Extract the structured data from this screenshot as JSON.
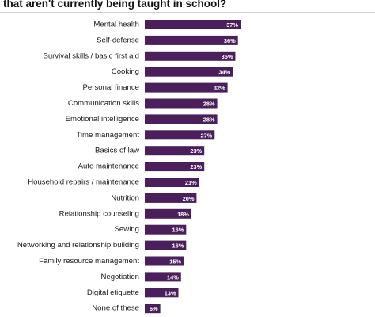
{
  "title": "that aren't currently being taught in school?",
  "colors": {
    "bar": "#4b1f5c",
    "value_text": "#ffffff",
    "label_text": "#1a1a1a"
  },
  "chart_data": {
    "type": "bar",
    "orientation": "horizontal",
    "categories": [
      "Mental health",
      "Self-defense",
      "Survival skills / basic first aid",
      "Cooking",
      "Personal finance",
      "Communication skills",
      "Emotional intelligence",
      "Time management",
      "Basics of law",
      "Auto maintenance",
      "Household repairs / maintenance",
      "Nutrition",
      "Relationship counseling",
      "Sewing",
      "Networking and relationship building",
      "Family resource management",
      "Negotiation",
      "Digital etiquette",
      "None of these"
    ],
    "values": [
      37,
      36,
      35,
      34,
      32,
      28,
      28,
      27,
      23,
      23,
      21,
      20,
      18,
      16,
      16,
      15,
      14,
      13,
      6
    ],
    "value_labels": [
      "37%",
      "36%",
      "35%",
      "34%",
      "32%",
      "28%",
      "28%",
      "27%",
      "23%",
      "23%",
      "21%",
      "20%",
      "18%",
      "16%",
      "16%",
      "15%",
      "14%",
      "13%",
      "6%"
    ],
    "title": "that aren't currently being taught in school?",
    "xlabel": "",
    "ylabel": "",
    "grid": false,
    "legend": "none"
  }
}
